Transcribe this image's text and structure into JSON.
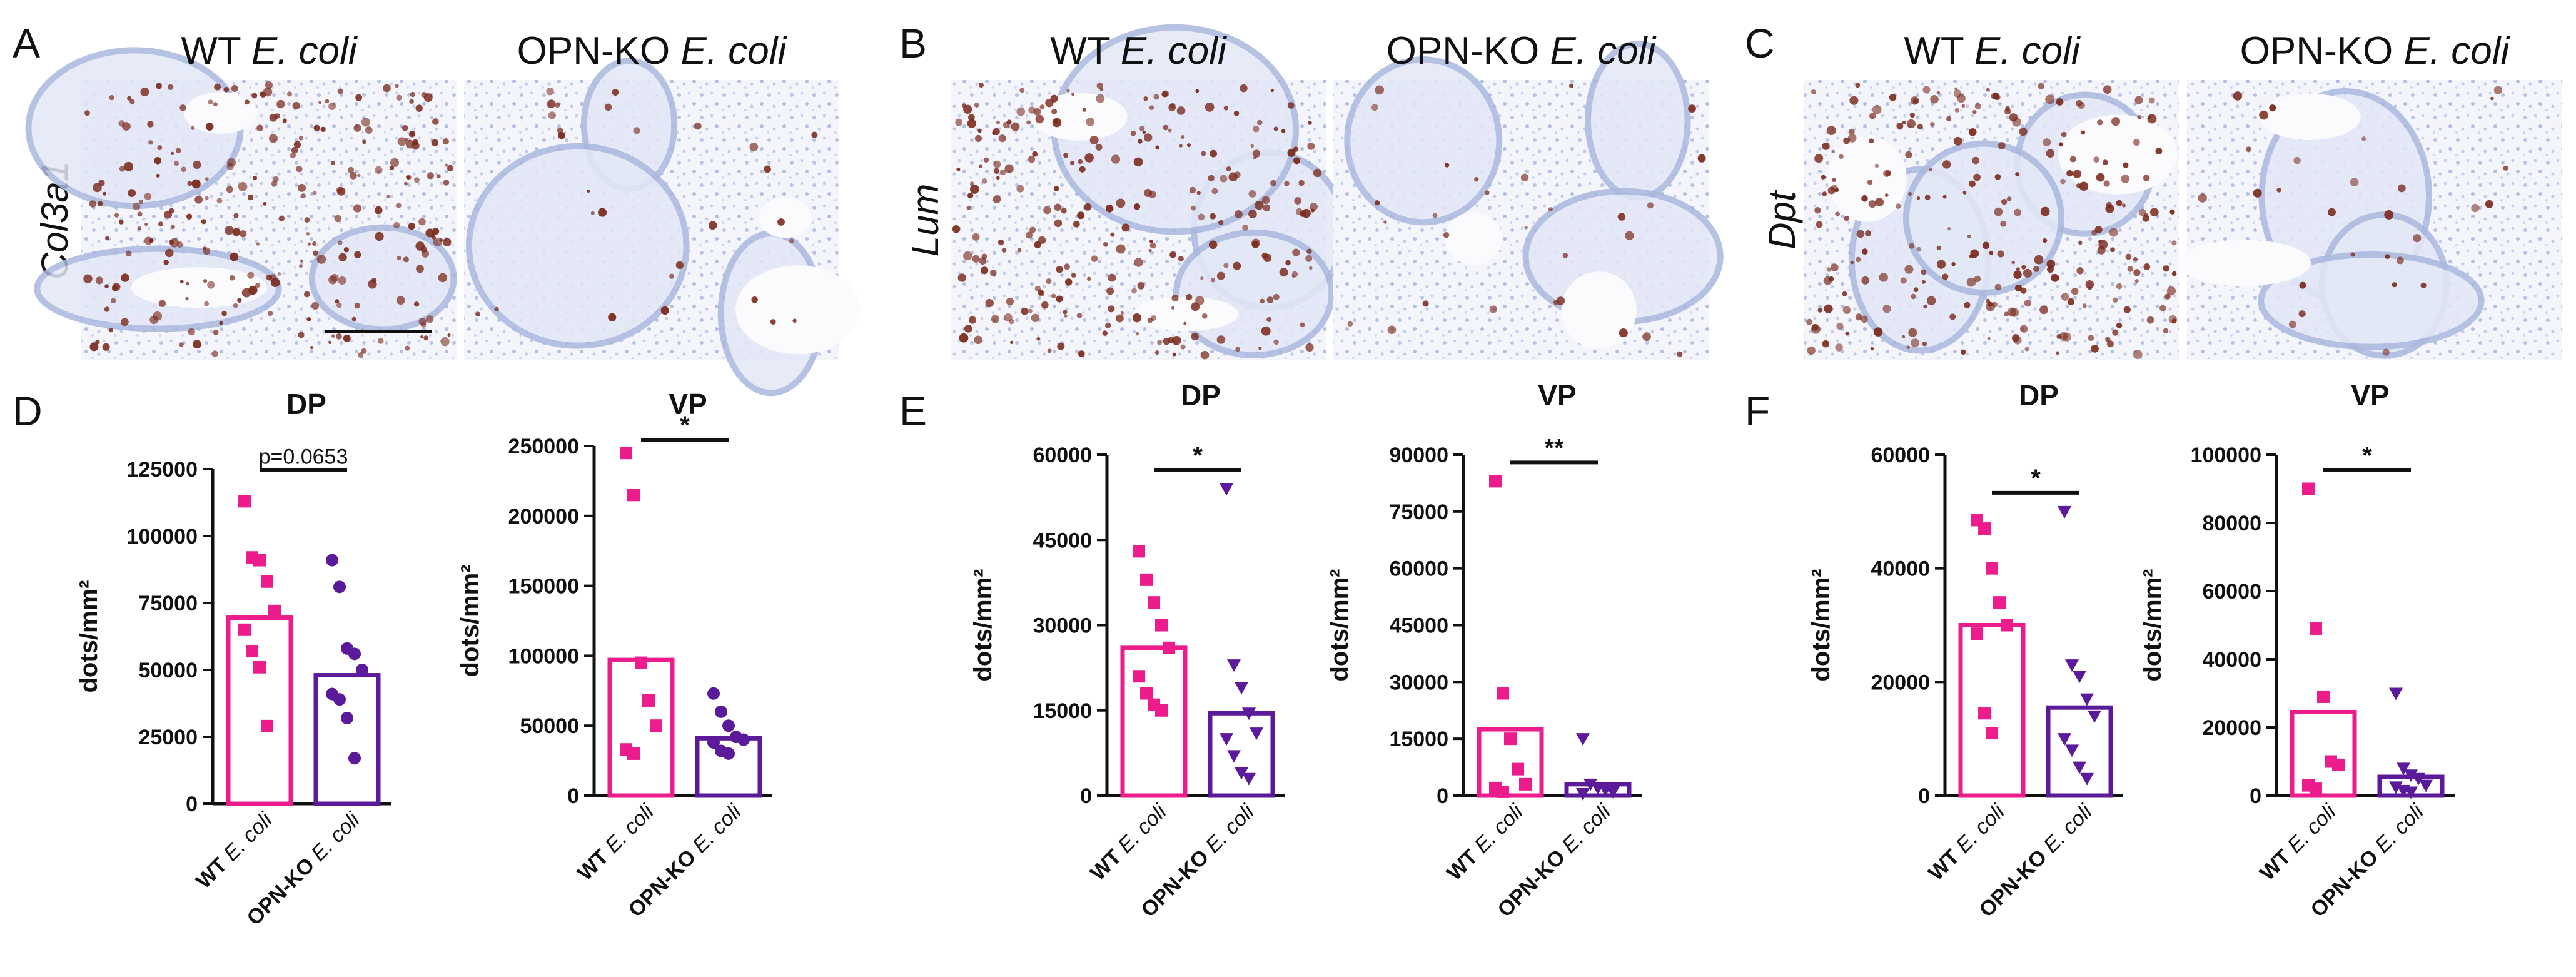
{
  "panel_letters": [
    "A",
    "B",
    "C",
    "D",
    "E",
    "F"
  ],
  "images": [
    {
      "letter": "A",
      "gene": "Col3a1",
      "col_wt": [
        "WT ",
        "E. coli"
      ],
      "col_ko": [
        "OPN-KO ",
        "E. coli"
      ]
    },
    {
      "letter": "B",
      "gene": "Lum",
      "col_wt": [
        "WT ",
        "E. coli"
      ],
      "col_ko": [
        "OPN-KO ",
        "E. coli"
      ]
    },
    {
      "letter": "C",
      "gene": "Dpt",
      "col_wt": [
        "WT ",
        "E. coli"
      ],
      "col_ko": [
        "OPN-KO ",
        "E. coli"
      ]
    }
  ],
  "colors": {
    "wt": "#ec1c8c",
    "ko": "#5b1a9a",
    "stain": "#7a2a1c",
    "tissue": "#aab8de",
    "axis": "#111111"
  },
  "category_labels": [
    [
      "WT ",
      "E. coli"
    ],
    [
      "OPN-KO ",
      "E. coli"
    ]
  ],
  "chart_data": [
    {
      "panel": "D",
      "title": "DP",
      "type": "bar",
      "ylabel": "dots/mm²",
      "ylim": [
        0,
        125000
      ],
      "yticks": [
        0,
        25000,
        50000,
        75000,
        100000,
        125000
      ],
      "yticklabels": [
        "0",
        "25000",
        "50000",
        "75000",
        "100000",
        "125000"
      ],
      "bars": [
        69500,
        48000
      ],
      "points": [
        [
          113000,
          92000,
          91000,
          83000,
          72000,
          65000,
          57000,
          51000,
          29000
        ],
        [
          91000,
          81000,
          58000,
          56000,
          50000,
          41000,
          39000,
          32000,
          17000
        ]
      ],
      "significance": "p=0.0653"
    },
    {
      "panel": "D",
      "title": "VP",
      "type": "bar",
      "ylabel": "dots/mm²",
      "ylim": [
        0,
        250000
      ],
      "yticks": [
        0,
        50000,
        100000,
        150000,
        200000,
        250000
      ],
      "yticklabels": [
        "0",
        "50000",
        "100000",
        "150000",
        "200000",
        "250000"
      ],
      "bars": [
        97000,
        41000
      ],
      "points": [
        [
          245000,
          215000,
          95000,
          68000,
          50000,
          33000,
          30000
        ],
        [
          73000,
          60000,
          50000,
          42000,
          40000,
          38000,
          32000,
          30000
        ]
      ],
      "significance": "*"
    },
    {
      "panel": "E",
      "title": "DP",
      "type": "bar",
      "ylabel": "dots/mm²",
      "ylim": [
        0,
        60000
      ],
      "yticks": [
        0,
        15000,
        30000,
        45000,
        60000
      ],
      "yticklabels": [
        "0",
        "15000",
        "30000",
        "45000",
        "60000"
      ],
      "bars": [
        26000,
        14500
      ],
      "points": [
        [
          43000,
          38000,
          34000,
          30000,
          26000,
          21000,
          18000,
          16000,
          15000
        ],
        [
          54000,
          23000,
          19000,
          14500,
          11000,
          10000,
          7000,
          4000,
          3000
        ]
      ],
      "significance": "*"
    },
    {
      "panel": "E",
      "title": "VP",
      "type": "bar",
      "ylabel": "dots/mm²",
      "ylim": [
        0,
        90000
      ],
      "yticks": [
        0,
        15000,
        30000,
        45000,
        60000,
        75000,
        90000
      ],
      "yticklabels": [
        "0",
        "15000",
        "30000",
        "45000",
        "60000",
        "75000",
        "90000"
      ],
      "bars": [
        17500,
        3000
      ],
      "points": [
        [
          83000,
          27000,
          15000,
          7000,
          3000,
          2000,
          1000
        ],
        [
          15000,
          3000,
          2000,
          1500,
          1000,
          500
        ]
      ],
      "significance": "**"
    },
    {
      "panel": "F",
      "title": "DP",
      "type": "bar",
      "ylabel": "dots/mm²",
      "ylim": [
        0,
        60000
      ],
      "yticks": [
        0,
        20000,
        40000,
        60000
      ],
      "yticklabels": [
        "0",
        "20000",
        "40000",
        "60000"
      ],
      "bars": [
        30000,
        15500
      ],
      "points": [
        [
          48500,
          47000,
          40000,
          34000,
          30000,
          28500,
          14500,
          11000
        ],
        [
          50000,
          23000,
          21000,
          17000,
          14000,
          10000,
          8000,
          5000,
          3000
        ]
      ],
      "significance": "*"
    },
    {
      "panel": "F",
      "title": "VP",
      "type": "bar",
      "ylabel": "dots/mm²",
      "ylim": [
        0,
        100000
      ],
      "yticks": [
        0,
        20000,
        40000,
        60000,
        80000,
        100000
      ],
      "yticklabels": [
        "0",
        "20000",
        "40000",
        "60000",
        "80000",
        "100000"
      ],
      "bars": [
        24500,
        5500
      ],
      "points": [
        [
          90000,
          49000,
          29000,
          10000,
          9000,
          3000,
          2000
        ],
        [
          30000,
          8000,
          6000,
          5000,
          3000,
          2500,
          1500,
          1000
        ]
      ],
      "significance": "*"
    }
  ]
}
